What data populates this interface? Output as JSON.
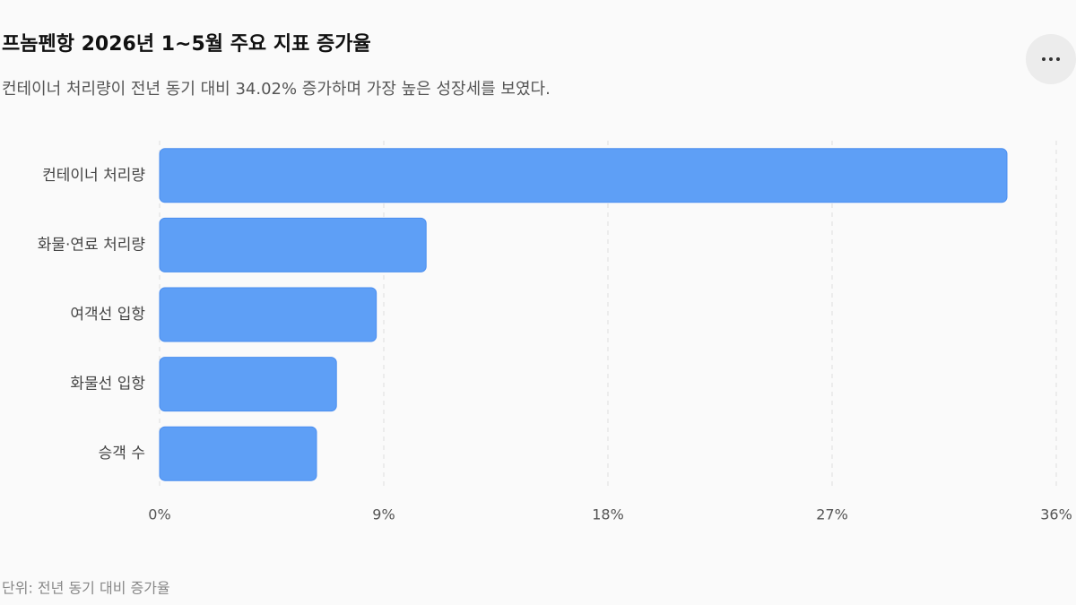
{
  "chart_data": {
    "type": "bar",
    "orientation": "horizontal",
    "title": "프놈펜항 2026년 1~5월 주요 지표 증가율",
    "subtitle": "컨테이너 처리량이 전년 동기 대비 34.02% 증가하며 가장 높은 성장세를 보였다.",
    "categories": [
      "컨테이너 처리량",
      "화물·연료 처리량",
      "여객선 입항",
      "화물선 입항",
      "승객 수"
    ],
    "values": [
      34.02,
      10.7,
      8.7,
      7.1,
      6.3
    ],
    "color": "#5e9ff6",
    "xlim": [
      0,
      36
    ],
    "xticks": [
      {
        "value": 0,
        "label": "0%"
      },
      {
        "value": 9,
        "label": "9%"
      },
      {
        "value": 18,
        "label": "18%"
      },
      {
        "value": 27,
        "label": "27%"
      },
      {
        "value": 36,
        "label": "36%"
      }
    ],
    "grid": true,
    "footnote": "단위: 전년 동기 대비 증가율"
  }
}
